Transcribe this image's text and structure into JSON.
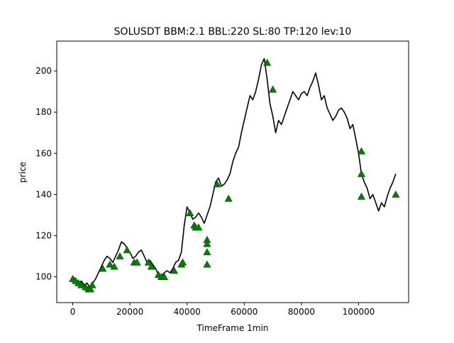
{
  "chart_data": {
    "type": "line",
    "title": "SOLUSDT BBM:2.1 BBL:220 SL:80 TP:120 lev:10",
    "xlabel": "TimeFrame 1min",
    "ylabel": "price",
    "xlim": [
      -5600,
      117500
    ],
    "ylim": [
      87.5,
      214.5
    ],
    "xticks": [
      0,
      20000,
      40000,
      60000,
      80000,
      100000
    ],
    "yticks": [
      100,
      120,
      140,
      160,
      180,
      200
    ],
    "grid": false,
    "legend": "none",
    "colors": {
      "line": "#000000",
      "marker": "#008000"
    },
    "series": [
      {
        "values": [
          [
            0,
            100
          ],
          [
            1000,
            99
          ],
          [
            2000,
            97
          ],
          [
            3000,
            98
          ],
          [
            4000,
            96
          ],
          [
            5000,
            97
          ],
          [
            6000,
            95
          ],
          [
            7000,
            97
          ],
          [
            8000,
            99
          ],
          [
            9000,
            102
          ],
          [
            10000,
            105
          ],
          [
            11000,
            108
          ],
          [
            12000,
            110
          ],
          [
            13000,
            109
          ],
          [
            14000,
            107
          ],
          [
            15000,
            110
          ],
          [
            16000,
            113
          ],
          [
            17000,
            117
          ],
          [
            18000,
            116
          ],
          [
            19000,
            114
          ],
          [
            20000,
            112
          ],
          [
            21000,
            109
          ],
          [
            22000,
            110
          ],
          [
            23000,
            112
          ],
          [
            24000,
            113
          ],
          [
            25000,
            110
          ],
          [
            26000,
            107
          ],
          [
            27000,
            108
          ],
          [
            28000,
            106
          ],
          [
            29000,
            104
          ],
          [
            30000,
            101
          ],
          [
            31000,
            100
          ],
          [
            32000,
            102
          ],
          [
            33000,
            103
          ],
          [
            34000,
            102
          ],
          [
            35000,
            104
          ],
          [
            36000,
            107
          ],
          [
            37000,
            108
          ],
          [
            38000,
            112
          ],
          [
            39000,
            125
          ],
          [
            40000,
            134
          ],
          [
            41000,
            131
          ],
          [
            42000,
            128
          ],
          [
            43000,
            129
          ],
          [
            44000,
            131
          ],
          [
            45000,
            129
          ],
          [
            46000,
            126
          ],
          [
            47000,
            130
          ],
          [
            48000,
            134
          ],
          [
            49000,
            140
          ],
          [
            50000,
            146
          ],
          [
            51000,
            148
          ],
          [
            52000,
            144
          ],
          [
            53000,
            145
          ],
          [
            54000,
            147
          ],
          [
            55000,
            150
          ],
          [
            56000,
            156
          ],
          [
            57000,
            160
          ],
          [
            58000,
            163
          ],
          [
            59000,
            170
          ],
          [
            60000,
            176
          ],
          [
            61000,
            182
          ],
          [
            62000,
            188
          ],
          [
            63000,
            186
          ],
          [
            64000,
            190
          ],
          [
            65000,
            196
          ],
          [
            66000,
            203
          ],
          [
            67000,
            206
          ],
          [
            68000,
            196
          ],
          [
            69000,
            184
          ],
          [
            70000,
            178
          ],
          [
            71000,
            170
          ],
          [
            72000,
            176
          ],
          [
            73000,
            174
          ],
          [
            74000,
            178
          ],
          [
            75000,
            182
          ],
          [
            76000,
            186
          ],
          [
            77000,
            190
          ],
          [
            78000,
            188
          ],
          [
            79000,
            186
          ],
          [
            80000,
            189
          ],
          [
            81000,
            190
          ],
          [
            82000,
            188
          ],
          [
            83000,
            192
          ],
          [
            84000,
            195
          ],
          [
            85000,
            199
          ],
          [
            86000,
            193
          ],
          [
            87000,
            186
          ],
          [
            88000,
            188
          ],
          [
            89000,
            182
          ],
          [
            90000,
            179
          ],
          [
            91000,
            176
          ],
          [
            92000,
            178
          ],
          [
            93000,
            181
          ],
          [
            94000,
            182
          ],
          [
            95000,
            180
          ],
          [
            96000,
            177
          ],
          [
            97000,
            172
          ],
          [
            98000,
            174
          ],
          [
            99000,
            167
          ],
          [
            100000,
            160
          ],
          [
            101000,
            150
          ],
          [
            102000,
            146
          ],
          [
            103000,
            143
          ],
          [
            104000,
            138
          ],
          [
            105000,
            140
          ],
          [
            106000,
            136
          ],
          [
            107000,
            132
          ],
          [
            108000,
            136
          ],
          [
            109000,
            134
          ],
          [
            110000,
            139
          ],
          [
            111000,
            143
          ],
          [
            112000,
            146
          ],
          [
            113000,
            150
          ]
        ]
      }
    ],
    "markers": [
      [
        0,
        99
      ],
      [
        1000,
        98
      ],
      [
        2000,
        97
      ],
      [
        3000,
        96
      ],
      [
        4500,
        95
      ],
      [
        5500,
        94
      ],
      [
        6200,
        94
      ],
      [
        6800,
        96
      ],
      [
        10500,
        104
      ],
      [
        13000,
        106
      ],
      [
        14500,
        105
      ],
      [
        16500,
        110
      ],
      [
        19000,
        113
      ],
      [
        21500,
        107
      ],
      [
        22500,
        107
      ],
      [
        26500,
        107
      ],
      [
        27500,
        105
      ],
      [
        30000,
        101
      ],
      [
        31000,
        100
      ],
      [
        32000,
        100
      ],
      [
        35500,
        103
      ],
      [
        38000,
        106
      ],
      [
        38500,
        107
      ],
      [
        41000,
        131
      ],
      [
        42500,
        125
      ],
      [
        43000,
        124
      ],
      [
        44000,
        124
      ],
      [
        47000,
        118
      ],
      [
        47000,
        116
      ],
      [
        47000,
        112
      ],
      [
        47000,
        106
      ],
      [
        50500,
        145
      ],
      [
        54500,
        138
      ],
      [
        68000,
        204
      ],
      [
        70000,
        191
      ],
      [
        101000,
        161
      ],
      [
        101000,
        150
      ],
      [
        101000,
        139
      ],
      [
        113000,
        140
      ]
    ]
  }
}
